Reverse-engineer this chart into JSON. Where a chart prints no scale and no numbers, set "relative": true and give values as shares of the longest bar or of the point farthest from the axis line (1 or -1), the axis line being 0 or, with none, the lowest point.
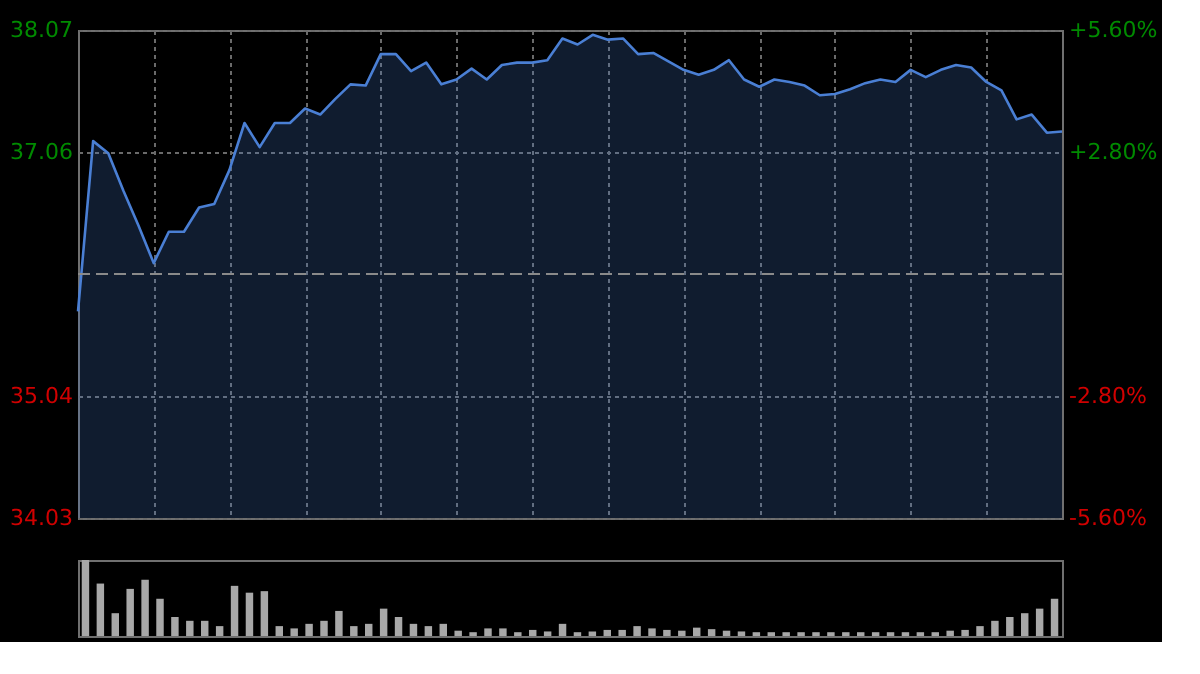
{
  "chart_data": [
    {
      "type": "area",
      "tick_labels": "y",
      "grid": true,
      "categories": [
        null,
        null,
        null,
        null,
        null,
        null,
        null,
        null,
        null,
        null,
        null,
        null,
        null,
        null,
        null,
        null,
        null,
        null,
        null,
        null,
        null,
        null,
        null,
        null,
        null,
        null,
        null,
        null,
        null,
        null,
        null,
        null,
        null,
        null,
        null,
        null,
        null,
        null,
        null,
        null,
        null,
        null,
        null,
        null,
        null,
        null,
        null,
        null,
        null,
        null,
        null,
        null,
        null,
        null,
        null,
        null,
        null,
        null,
        null,
        null,
        null,
        null,
        null,
        null,
        null,
        null
      ],
      "ylim": [
        34.03,
        38.07
      ],
      "yticks": [
        34.03,
        35.04,
        37.06,
        38.07
      ],
      "y2lim": [
        -5.6,
        5.6
      ],
      "y2ticks": [
        {
          "value": -5.6,
          "label": "-5.60%"
        },
        {
          "value": -2.8,
          "label": "-2.80%"
        },
        {
          "value": 2.8,
          "label": "+2.80%"
        },
        {
          "value": 5.6,
          "label": "+5.60%"
        }
      ],
      "ref_lines": [
        {
          "axis": "y",
          "value": 36.05,
          "line_style": "dashed",
          "color": "#8a8a8a"
        }
      ],
      "series": [
        {
          "color": "#4a7fd4",
          "values": [
            35.74,
            37.15,
            37.05,
            36.74,
            36.45,
            36.14,
            36.4,
            36.4,
            36.6,
            36.63,
            36.91,
            37.3,
            37.1,
            37.3,
            37.3,
            37.42,
            37.37,
            37.5,
            37.62,
            37.61,
            37.87,
            37.87,
            37.73,
            37.8,
            37.62,
            37.66,
            37.75,
            37.66,
            37.78,
            37.8,
            37.8,
            37.82,
            38.0,
            37.95,
            38.03,
            37.99,
            38.0,
            37.87,
            37.88,
            37.81,
            37.74,
            37.7,
            37.74,
            37.82,
            37.66,
            37.6,
            37.66,
            37.64,
            37.61,
            37.53,
            37.54,
            37.58,
            37.63,
            37.66,
            37.64,
            37.74,
            37.68,
            37.74,
            37.78,
            37.76,
            37.64,
            37.57,
            37.33,
            37.37,
            37.22,
            37.23
          ]
        }
      ]
    },
    {
      "type": "bar",
      "relative": true,
      "tick_labels": false,
      "categories": [
        null,
        null,
        null,
        null,
        null,
        null,
        null,
        null,
        null,
        null,
        null,
        null,
        null,
        null,
        null,
        null,
        null,
        null,
        null,
        null,
        null,
        null,
        null,
        null,
        null,
        null,
        null,
        null,
        null,
        null,
        null,
        null,
        null,
        null,
        null,
        null,
        null,
        null,
        null,
        null,
        null,
        null,
        null,
        null,
        null,
        null,
        null,
        null,
        null,
        null,
        null,
        null,
        null,
        null,
        null,
        null,
        null,
        null,
        null,
        null,
        null,
        null,
        null,
        null,
        null,
        null
      ],
      "series": [
        {
          "color": "#a8a8a8",
          "values": [
            1.0,
            0.69,
            0.3,
            0.62,
            0.74,
            0.49,
            0.25,
            0.2,
            0.2,
            0.13,
            0.66,
            0.57,
            0.59,
            0.13,
            0.1,
            0.16,
            0.2,
            0.33,
            0.13,
            0.16,
            0.36,
            0.25,
            0.16,
            0.13,
            0.16,
            0.07,
            0.05,
            0.1,
            0.1,
            0.05,
            0.08,
            0.06,
            0.16,
            0.05,
            0.06,
            0.08,
            0.08,
            0.13,
            0.1,
            0.08,
            0.07,
            0.11,
            0.09,
            0.07,
            0.06,
            0.05,
            0.05,
            0.05,
            0.05,
            0.05,
            0.05,
            0.05,
            0.05,
            0.05,
            0.05,
            0.05,
            0.05,
            0.05,
            0.07,
            0.08,
            0.13,
            0.2,
            0.25,
            0.3,
            0.36,
            0.49
          ]
        }
      ]
    }
  ]
}
